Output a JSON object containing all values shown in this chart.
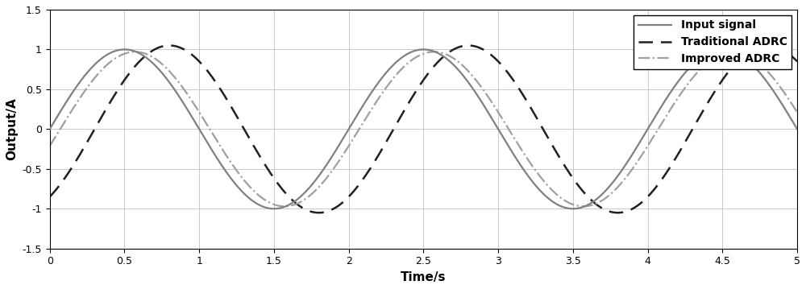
{
  "title": "",
  "xlabel": "Time/s",
  "ylabel": "Output/A",
  "xlim": [
    0,
    5
  ],
  "ylim": [
    -1.5,
    1.5
  ],
  "xticks": [
    0,
    0.5,
    1,
    1.5,
    2,
    2.5,
    3,
    3.5,
    4,
    4.5,
    5
  ],
  "yticks": [
    -1.5,
    -1,
    -0.5,
    0,
    0.5,
    1,
    1.5
  ],
  "input_color": "#808080",
  "trad_color": "#202020",
  "impr_color": "#a0a0a0",
  "input_lw": 1.6,
  "trad_lw": 1.8,
  "impr_lw": 1.6,
  "frequency": 0.5,
  "amplitude": 1.0,
  "trad_phase_lag": 0.3,
  "trad_amplitude": 1.05,
  "impr_phase_lag": 0.07,
  "impr_amplitude": 0.97,
  "legend_labels": [
    "Input signal",
    "Traditional ADRC",
    "Improved ADRC"
  ],
  "background_color": "#ffffff",
  "grid_color": "#c0c0c0",
  "font_size": 11,
  "legend_font_size": 10
}
